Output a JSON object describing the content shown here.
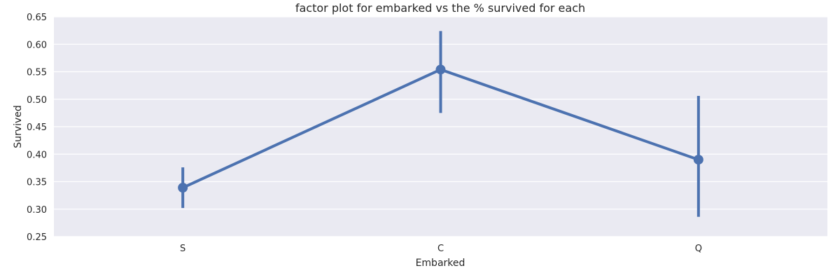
{
  "chart_data": {
    "type": "line",
    "title": "factor plot for embarked vs the % survived for each",
    "xlabel": "Embarked",
    "ylabel": "Survived",
    "categories": [
      "S",
      "C",
      "Q"
    ],
    "series": [
      {
        "values": [
          0.339,
          0.554,
          0.39
        ],
        "ci_low": [
          0.302,
          0.475,
          0.286
        ],
        "ci_high": [
          0.376,
          0.624,
          0.506
        ]
      }
    ],
    "ylim": [
      0.25,
      0.65
    ],
    "yticks": [
      0.25,
      0.3,
      0.35,
      0.4,
      0.45,
      0.5,
      0.55,
      0.6,
      0.65
    ],
    "ytick_labels": [
      "0.25",
      "0.30",
      "0.35",
      "0.40",
      "0.45",
      "0.50",
      "0.55",
      "0.60",
      "0.65"
    ],
    "grid": true,
    "colors": {
      "background": "#eaeaf2",
      "grid": "#ffffff",
      "series": "#4c72b0"
    }
  }
}
